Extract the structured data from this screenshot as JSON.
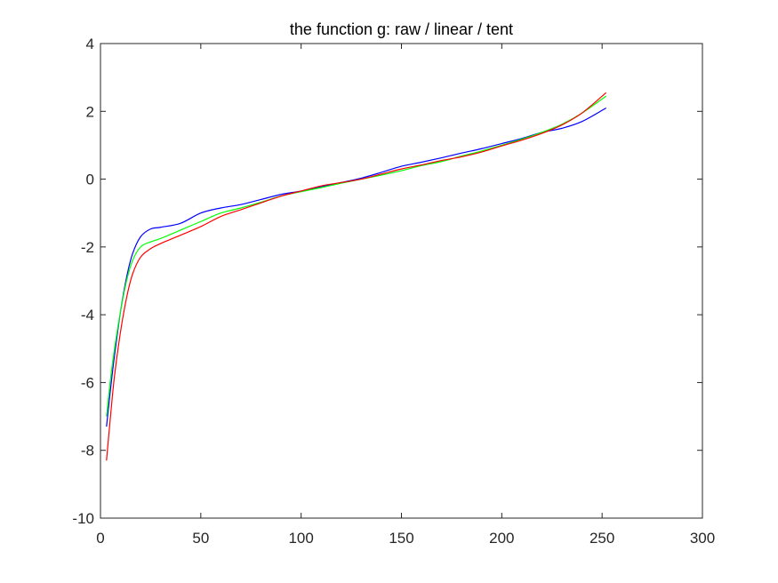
{
  "chart_data": {
    "type": "line",
    "title": "the function g: raw / linear / tent",
    "xlabel": "",
    "ylabel": "",
    "xlim": [
      0,
      300
    ],
    "ylim": [
      -10,
      4
    ],
    "x_ticks": [
      0,
      50,
      100,
      150,
      200,
      250,
      300
    ],
    "y_ticks": [
      -10,
      -8,
      -6,
      -4,
      -2,
      0,
      2,
      4
    ],
    "x_tick_labels": [
      "0",
      "50",
      "100",
      "150",
      "200",
      "250",
      "300"
    ],
    "y_tick_labels": [
      "-10",
      "-8",
      "-6",
      "-4",
      "-2",
      "0",
      "2",
      "4"
    ],
    "grid": false,
    "legend": "none",
    "series": [
      {
        "color": "#0000ff",
        "x": [
          3,
          5,
          7,
          10,
          13,
          16,
          20,
          25,
          30,
          40,
          50,
          60,
          70,
          80,
          90,
          100,
          110,
          120,
          130,
          140,
          150,
          160,
          170,
          180,
          190,
          200,
          210,
          220,
          230,
          240,
          252
        ],
        "y": [
          -7.3,
          -6.2,
          -5.2,
          -3.9,
          -2.9,
          -2.2,
          -1.7,
          -1.47,
          -1.42,
          -1.3,
          -1.0,
          -0.85,
          -0.75,
          -0.6,
          -0.45,
          -0.35,
          -0.22,
          -0.1,
          0.03,
          0.2,
          0.38,
          0.5,
          0.63,
          0.77,
          0.9,
          1.05,
          1.2,
          1.38,
          1.5,
          1.7,
          2.1
        ]
      },
      {
        "color": "#00ff00",
        "x": [
          3,
          5,
          7,
          10,
          13,
          16,
          20,
          25,
          30,
          40,
          50,
          60,
          70,
          80,
          90,
          100,
          110,
          120,
          130,
          140,
          150,
          160,
          170,
          180,
          190,
          200,
          210,
          220,
          230,
          240,
          252
        ],
        "y": [
          -7.0,
          -5.9,
          -5.0,
          -3.9,
          -3.0,
          -2.4,
          -2.0,
          -1.85,
          -1.75,
          -1.5,
          -1.25,
          -1.0,
          -0.85,
          -0.68,
          -0.5,
          -0.37,
          -0.25,
          -0.12,
          0.0,
          0.12,
          0.25,
          0.4,
          0.52,
          0.68,
          0.83,
          1.0,
          1.18,
          1.38,
          1.62,
          1.95,
          2.45
        ]
      },
      {
        "color": "#ff0000",
        "x": [
          3,
          5,
          7,
          10,
          13,
          16,
          20,
          25,
          30,
          40,
          50,
          60,
          70,
          80,
          90,
          100,
          110,
          120,
          130,
          140,
          150,
          160,
          170,
          180,
          190,
          200,
          210,
          220,
          230,
          240,
          252
        ],
        "y": [
          -8.3,
          -7.0,
          -5.8,
          -4.5,
          -3.5,
          -2.8,
          -2.3,
          -2.05,
          -1.9,
          -1.65,
          -1.4,
          -1.1,
          -0.9,
          -0.7,
          -0.5,
          -0.35,
          -0.2,
          -0.1,
          0.0,
          0.15,
          0.3,
          0.42,
          0.55,
          0.66,
          0.8,
          0.98,
          1.15,
          1.35,
          1.6,
          1.95,
          2.55
        ]
      }
    ]
  }
}
